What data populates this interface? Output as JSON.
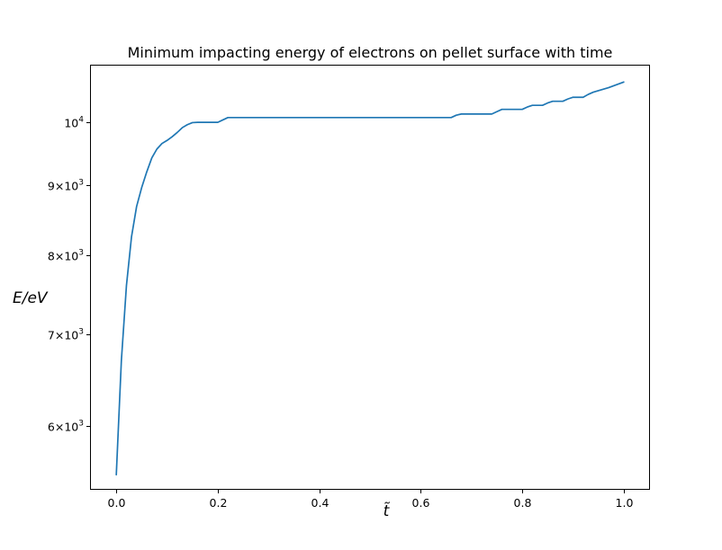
{
  "chart_data": {
    "type": "line",
    "title": "Minimum impacting energy of electrons on pellet surface with time",
    "xlabel": "t̃",
    "ylabel": "E/eV",
    "yscale": "log",
    "xlim": [
      -0.05,
      1.05
    ],
    "ylim": [
      5400,
      11000
    ],
    "grid": false,
    "x_ticks": [
      {
        "value": 0.0,
        "label": "0.0"
      },
      {
        "value": 0.2,
        "label": "0.2"
      },
      {
        "value": 0.4,
        "label": "0.4"
      },
      {
        "value": 0.6,
        "label": "0.6"
      },
      {
        "value": 0.8,
        "label": "0.8"
      },
      {
        "value": 1.0,
        "label": "1.0"
      }
    ],
    "y_ticks": [
      {
        "value": 6000,
        "mantissa": "6",
        "base": "10",
        "exp": "3"
      },
      {
        "value": 7000,
        "mantissa": "7",
        "base": "10",
        "exp": "3"
      },
      {
        "value": 8000,
        "mantissa": "8",
        "base": "10",
        "exp": "3"
      },
      {
        "value": 9000,
        "mantissa": "9",
        "base": "10",
        "exp": "3"
      },
      {
        "value": 10000,
        "mantissa": "",
        "base": "10",
        "exp": "4"
      }
    ],
    "series": [
      {
        "color": "#1f77b4",
        "x": [
          0.0,
          0.01,
          0.02,
          0.03,
          0.04,
          0.05,
          0.06,
          0.07,
          0.08,
          0.09,
          0.1,
          0.11,
          0.12,
          0.13,
          0.14,
          0.15,
          0.16,
          0.2,
          0.21,
          0.22,
          0.66,
          0.67,
          0.68,
          0.74,
          0.75,
          0.76,
          0.8,
          0.81,
          0.82,
          0.84,
          0.85,
          0.86,
          0.88,
          0.89,
          0.9,
          0.92,
          0.93,
          0.94,
          0.97,
          1.0
        ],
        "y": [
          5530,
          6700,
          7600,
          8250,
          8680,
          8960,
          9200,
          9420,
          9560,
          9650,
          9700,
          9760,
          9830,
          9910,
          9960,
          9995,
          10000,
          10000,
          10040,
          10080,
          10080,
          10120,
          10140,
          10140,
          10180,
          10220,
          10220,
          10260,
          10290,
          10290,
          10330,
          10360,
          10360,
          10400,
          10430,
          10430,
          10480,
          10520,
          10600,
          10700
        ]
      }
    ]
  }
}
